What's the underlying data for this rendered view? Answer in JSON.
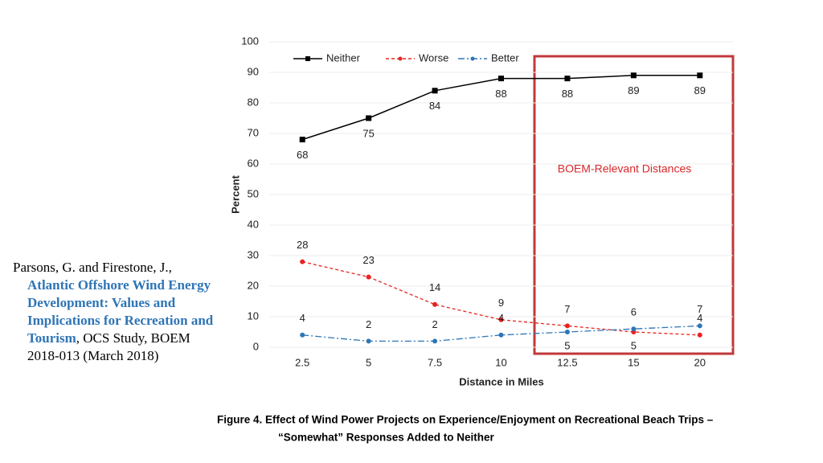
{
  "chart_data": {
    "type": "line",
    "categories": [
      "2.5",
      "5",
      "7.5",
      "10",
      "12.5",
      "15",
      "20"
    ],
    "series": [
      {
        "name": "Neither",
        "color": "#000000",
        "values": [
          68,
          75,
          84,
          88,
          88,
          89,
          89
        ]
      },
      {
        "name": "Worse",
        "color": "#e8231f",
        "values": [
          28,
          23,
          14,
          9,
          7,
          5,
          4
        ]
      },
      {
        "name": "Better",
        "color": "#2e75b6",
        "values": [
          4,
          2,
          2,
          4,
          5,
          6,
          7
        ]
      }
    ],
    "ylim": [
      0,
      100
    ],
    "yticks": [
      0,
      10,
      20,
      30,
      40,
      50,
      60,
      70,
      80,
      90,
      100
    ],
    "ylabel": "Percent",
    "xlabel": "Distance in Miles",
    "annotation": "BOEM-Relevant Distances",
    "grid": true,
    "legend": "top-left"
  },
  "citation": {
    "authors": "Parsons, G. and Firestone, J., ",
    "title": "Atlantic Offshore Wind Energy Development: Values and Implications for Recreation and Tourism",
    "rest": ", OCS Study, BOEM 2018-013 (March 2018)"
  },
  "caption": [
    "Figure 4. Effect of Wind Power Projects on Experience/Enjoyment on Recreational Beach Trips –",
    "“Somewhat” Responses Added to Neither"
  ]
}
